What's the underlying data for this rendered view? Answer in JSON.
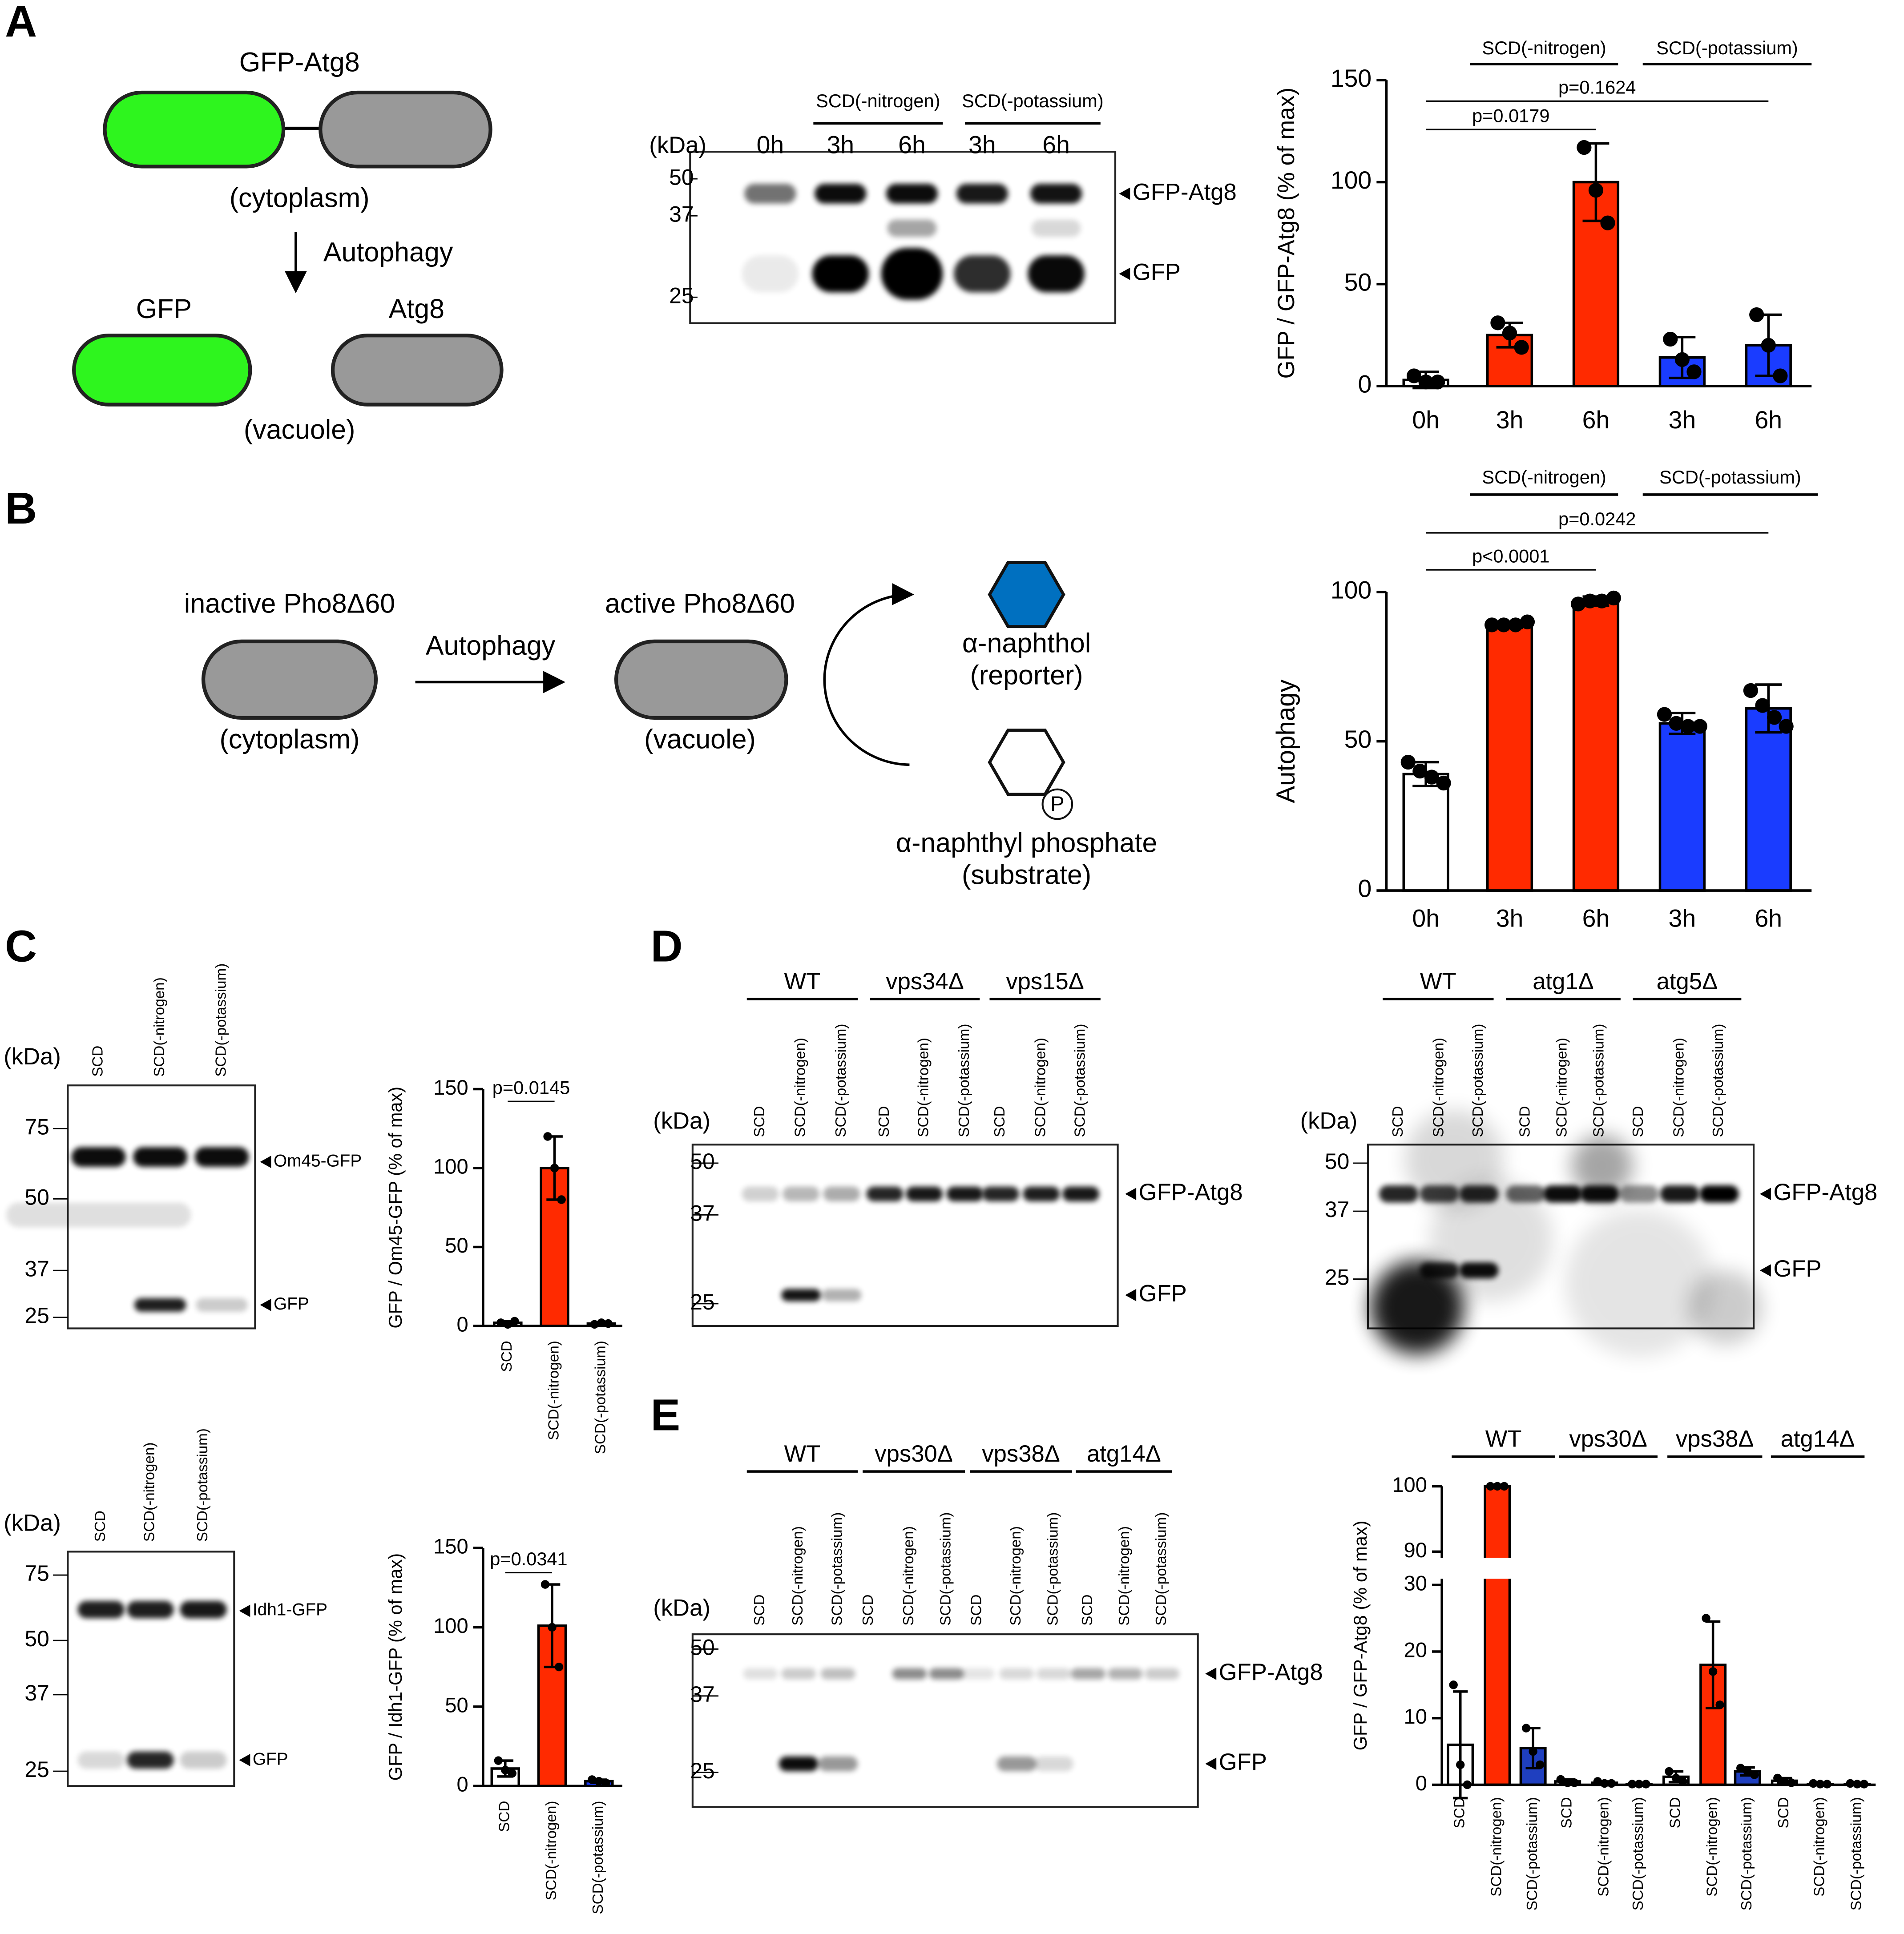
{
  "panel_labels": [
    "A",
    "B",
    "C",
    "D",
    "E"
  ],
  "diagram_a": {
    "fusion": "GFP-Atg8",
    "compartment_1": "(cytoplasm)",
    "process": "Autophagy",
    "product_1": "GFP",
    "product_2": "Atg8",
    "compartment_2": "(vacuole)"
  },
  "diagram_b": {
    "inactive_enzyme": "inactive Pho8Δ60",
    "compartment_1": "(cytoplasm)",
    "process": "Autophagy",
    "active_enzyme": "active Pho8Δ60",
    "compartment_2": "(vacuole)",
    "product": "α-naphthol",
    "product_role": "(reporter)",
    "phosphate": "P",
    "substrate": "α-naphthyl phosphate",
    "substrate_role": "(substrate)"
  },
  "blots": [
    {
      "kda_label": "(kDa)",
      "lanes": [
        "0h",
        "3h",
        "6h",
        "3h",
        "6h"
      ],
      "groups": [
        {
          "label": "SCD(-nitrogen)",
          "color": "#ff0000"
        },
        {
          "label": "SCD(-potassium)",
          "color": "#0000ff"
        }
      ],
      "markers": [
        50,
        37,
        25
      ],
      "proteins": [
        "GFP-Atg8",
        "GFP"
      ]
    },
    {
      "kda_label": "(kDa)",
      "lanes": [
        "SCD",
        "SCD(-nitrogen)",
        "SCD(-potassium)"
      ],
      "groups": [],
      "markers": [
        75,
        50,
        37,
        25
      ],
      "proteins": [
        "Om45-GFP",
        "GFP"
      ]
    },
    {
      "kda_label": "(kDa)",
      "lanes": [
        "SCD",
        "SCD(-nitrogen)",
        "SCD(-potassium)"
      ],
      "groups": [],
      "markers": [
        75,
        50,
        37,
        25
      ],
      "proteins": [
        "Idh1-GFP",
        "GFP"
      ]
    },
    {
      "kda_label": "(kDa)",
      "lanes": [
        "SCD",
        "SCD(-nitrogen)",
        "SCD(-potassium)",
        "SCD",
        "SCD(-nitrogen)",
        "SCD(-potassium)",
        "SCD",
        "SCD(-nitrogen)",
        "SCD(-potassium)"
      ],
      "groups": [
        {
          "label": "WT",
          "color": "#000000"
        },
        {
          "label": "vps34Δ",
          "color": "#000000"
        },
        {
          "label": "vps15Δ",
          "color": "#000000"
        }
      ],
      "markers": [
        50,
        37,
        25
      ],
      "proteins": [
        "GFP-Atg8",
        "GFP"
      ]
    },
    {
      "kda_label": "(kDa)",
      "lanes": [
        "SCD",
        "SCD(-nitrogen)",
        "SCD(-potassium)",
        "SCD",
        "SCD(-nitrogen)",
        "SCD(-potassium)",
        "SCD",
        "SCD(-nitrogen)",
        "SCD(-potassium)"
      ],
      "groups": [
        {
          "label": "WT",
          "color": "#000000"
        },
        {
          "label": "atg1Δ",
          "color": "#000000"
        },
        {
          "label": "atg5Δ",
          "color": "#000000"
        }
      ],
      "markers": [
        50,
        37,
        25
      ],
      "proteins": [
        "GFP-Atg8",
        "GFP"
      ]
    },
    {
      "kda_label": "(kDa)",
      "lanes": [
        "SCD",
        "SCD(-nitrogen)",
        "SCD(-potassium)",
        "SCD",
        "SCD(-nitrogen)",
        "SCD(-potassium)",
        "SCD",
        "SCD(-nitrogen)",
        "SCD(-potassium)",
        "SCD",
        "SCD(-nitrogen)",
        "SCD(-potassium)"
      ],
      "groups": [
        {
          "label": "WT",
          "color": "#000000"
        },
        {
          "label": "vps30Δ",
          "color": "#000000"
        },
        {
          "label": "vps38Δ",
          "color": "#000000"
        },
        {
          "label": "atg14Δ",
          "color": "#000000"
        }
      ],
      "markers": [
        50,
        37,
        25
      ],
      "proteins": [
        "GFP-Atg8",
        "GFP"
      ]
    }
  ],
  "chart_data": [
    {
      "type": "bar",
      "ylabel": "GFP / GFP-Atg8 (% of max)",
      "categories": [
        "0h",
        "3h",
        "6h",
        "3h",
        "6h"
      ],
      "colors": [
        "#ffffff",
        "#ff2a00",
        "#ff2a00",
        "#1a3cff",
        "#1a3cff"
      ],
      "values": [
        3,
        25,
        100,
        14,
        20
      ],
      "errors": [
        4,
        6,
        19,
        10,
        15
      ],
      "points": [
        [
          5,
          2,
          2
        ],
        [
          31,
          26,
          19
        ],
        [
          117,
          96,
          80
        ],
        [
          23,
          13,
          7
        ],
        [
          35,
          20,
          5
        ]
      ],
      "ylim": [
        0,
        150
      ],
      "yticks": [
        0,
        50,
        100,
        150
      ],
      "groups": [
        {
          "label": "SCD(-nitrogen)",
          "color": "#ff0000"
        },
        {
          "label": "SCD(-potassium)",
          "color": "#0000ff"
        }
      ],
      "comparisons": [
        "p=0.0179",
        "p=0.1624"
      ]
    },
    {
      "type": "bar",
      "ylabel": "Autophagy",
      "categories": [
        "0h",
        "3h",
        "6h",
        "3h",
        "6h"
      ],
      "colors": [
        "#ffffff",
        "#ff2a00",
        "#ff2a00",
        "#1a3cff",
        "#1a3cff"
      ],
      "values": [
        39,
        89,
        97,
        56,
        61
      ],
      "errors": [
        4,
        1,
        1.5,
        3.5,
        8
      ],
      "points": [
        [
          43,
          40,
          38,
          36
        ],
        [
          89,
          89,
          89,
          90
        ],
        [
          96,
          97,
          97,
          98
        ],
        [
          59,
          56,
          55,
          55
        ],
        [
          67,
          62,
          58,
          55
        ]
      ],
      "ylim": [
        0,
        100
      ],
      "yticks": [
        0,
        50,
        100
      ],
      "groups": [
        {
          "label": "SCD(-nitrogen)",
          "color": "#ff0000"
        },
        {
          "label": "SCD(-potassium)",
          "color": "#0000ff"
        }
      ],
      "comparisons": [
        "p<0.0001",
        "p=0.0242"
      ]
    },
    {
      "type": "bar",
      "ylabel": "GFP / Om45-GFP (% of max)",
      "categories": [
        "SCD",
        "SCD(-nitrogen)",
        "SCD(-potassium)"
      ],
      "colors": [
        "#ffffff",
        "#ff2a00",
        "#1a3cff"
      ],
      "values": [
        2,
        100,
        1.5
      ],
      "errors": [
        1,
        20,
        0.5
      ],
      "points": [
        [
          2,
          1,
          3
        ],
        [
          120,
          100,
          80
        ],
        [
          1,
          2,
          1.5
        ]
      ],
      "ylim": [
        0,
        150
      ],
      "yticks": [
        0,
        50,
        100,
        150
      ],
      "groups": [],
      "comparisons": [
        "p=0.0145"
      ]
    },
    {
      "type": "bar",
      "ylabel": "GFP / Idh1-GFP (% of max)",
      "categories": [
        "SCD",
        "SCD(-nitrogen)",
        "SCD(-potassium)"
      ],
      "colors": [
        "#ffffff",
        "#ff2a00",
        "#1a3cff"
      ],
      "values": [
        11,
        101,
        3
      ],
      "errors": [
        5,
        26,
        1
      ],
      "points": [
        [
          16,
          10,
          8
        ],
        [
          127,
          100,
          75
        ],
        [
          4,
          3,
          2
        ]
      ],
      "ylim": [
        0,
        150
      ],
      "yticks": [
        0,
        50,
        100,
        150
      ],
      "groups": [],
      "comparisons": [
        "p=0.0341"
      ]
    },
    {
      "type": "bar",
      "ylabel": "GFP / GFP-Atg8 (% of max)",
      "categories": [
        "SCD",
        "SCD(-nitrogen)",
        "SCD(-potassium)",
        "SCD",
        "SCD(-nitrogen)",
        "SCD(-potassium)",
        "SCD",
        "SCD(-nitrogen)",
        "SCD(-potassium)",
        "SCD",
        "SCD(-nitrogen)",
        "SCD(-potassium)"
      ],
      "colors": [
        "#ffffff",
        "#ff2a00",
        "#1f3fbf",
        "#ffffff",
        "#ff2a00",
        "#1f3fbf",
        "#ffffff",
        "#ff2a00",
        "#1f3fbf",
        "#ffffff",
        "#ff2a00",
        "#1f3fbf"
      ],
      "values": [
        6,
        100,
        5.5,
        0.5,
        0.3,
        0.1,
        1.2,
        18,
        2,
        0.6,
        0.1,
        0.1
      ],
      "errors": [
        8,
        0,
        3,
        0.3,
        0.2,
        0,
        0.8,
        6.5,
        0.6,
        0.4,
        0.1,
        0.1
      ],
      "points": [
        [
          15,
          3,
          0
        ],
        [
          100,
          100,
          100
        ],
        [
          8.5,
          5,
          3
        ],
        [
          0.8,
          0.3,
          0.3
        ],
        [
          0.5,
          0.2,
          0.2
        ],
        [
          0.1,
          0.1,
          0.1
        ],
        [
          2,
          1,
          0.5
        ],
        [
          25,
          17,
          12
        ],
        [
          2.5,
          2,
          1.5
        ],
        [
          1,
          0.5,
          0.3
        ],
        [
          0.2,
          0.1,
          0.1
        ],
        [
          0.2,
          0.1,
          0.1
        ]
      ],
      "ylim": [
        0,
        100
      ],
      "ybreak": [
        30,
        90
      ],
      "yticks": [
        0,
        10,
        20,
        30,
        90,
        100
      ],
      "groups": [
        {
          "label": "WT",
          "color": "#000000"
        },
        {
          "label": "vps30Δ",
          "color": "#000000"
        },
        {
          "label": "vps38Δ",
          "color": "#000000"
        },
        {
          "label": "atg14Δ",
          "color": "#000000"
        }
      ],
      "comparisons": []
    }
  ]
}
